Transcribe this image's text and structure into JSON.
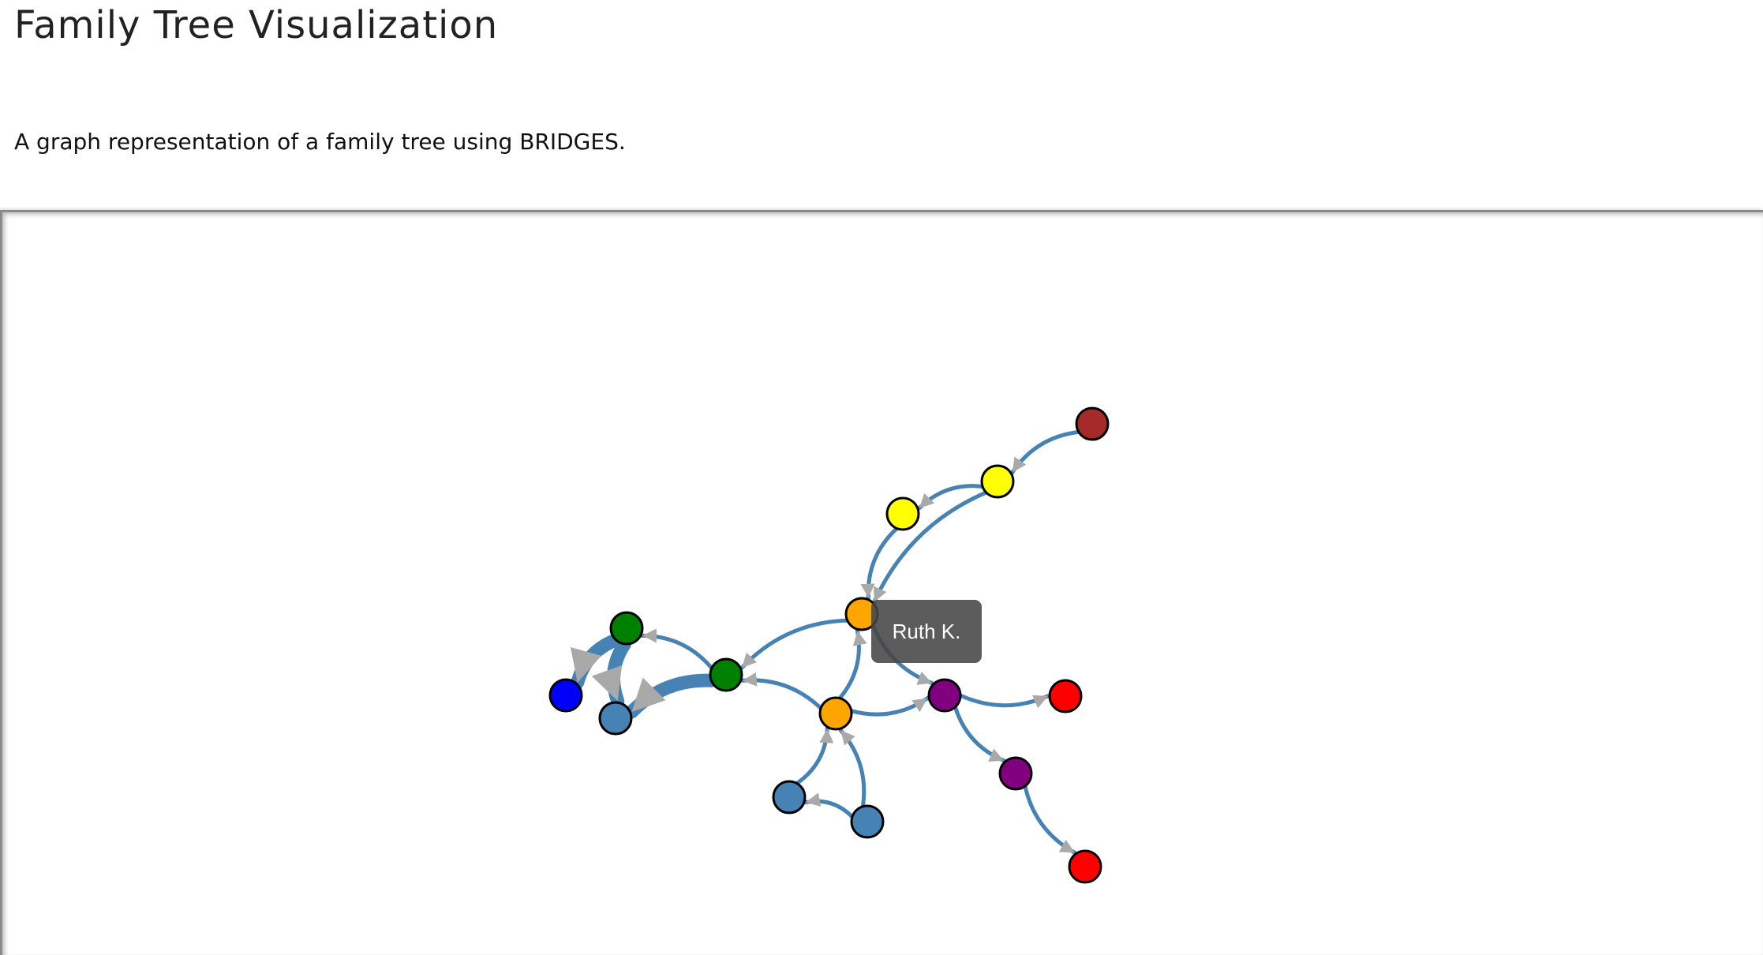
{
  "page": {
    "title": "Family Tree Visualization",
    "description": "A graph representation of a family tree using BRIDGES."
  },
  "graph": {
    "edge_color": "#4682b4",
    "arrow_color": "#a9a9a9",
    "node_border_color": "#000000",
    "tooltip": {
      "label": "Ruth K."
    },
    "nodes": [
      {
        "id": "n-brown",
        "color": "#a52a2a"
      },
      {
        "id": "n-yellow-1",
        "color": "#ffff00"
      },
      {
        "id": "n-yellow-2",
        "color": "#ffff00"
      },
      {
        "id": "n-orange-ruth",
        "color": "#ffa500"
      },
      {
        "id": "n-orange-2",
        "color": "#ffa500"
      },
      {
        "id": "n-green-1",
        "color": "#008000"
      },
      {
        "id": "n-green-2",
        "color": "#008000"
      },
      {
        "id": "n-blue",
        "color": "#0000ff"
      },
      {
        "id": "n-steel-1",
        "color": "#4682b4"
      },
      {
        "id": "n-steel-2",
        "color": "#4682b4"
      },
      {
        "id": "n-steel-3",
        "color": "#4682b4"
      },
      {
        "id": "n-purple-1",
        "color": "#800080"
      },
      {
        "id": "n-purple-2",
        "color": "#800080"
      },
      {
        "id": "n-red-1",
        "color": "#ff0000"
      },
      {
        "id": "n-red-2",
        "color": "#ff0000"
      }
    ],
    "edges": [
      {
        "from": "n-brown",
        "to": "n-yellow-1",
        "weight": "thin"
      },
      {
        "from": "n-yellow-1",
        "to": "n-yellow-2",
        "weight": "thin"
      },
      {
        "from": "n-yellow-1",
        "to": "n-orange-ruth",
        "weight": "thin"
      },
      {
        "from": "n-yellow-2",
        "to": "n-orange-ruth",
        "weight": "thin"
      },
      {
        "from": "n-orange-ruth",
        "to": "n-green-2",
        "weight": "thin"
      },
      {
        "from": "n-orange-ruth",
        "to": "n-purple-1",
        "weight": "thin"
      },
      {
        "from": "n-orange-2",
        "to": "n-orange-ruth",
        "weight": "thin"
      },
      {
        "from": "n-orange-2",
        "to": "n-green-2",
        "weight": "thin"
      },
      {
        "from": "n-orange-2",
        "to": "n-purple-1",
        "weight": "thin"
      },
      {
        "from": "n-green-2",
        "to": "n-green-1",
        "weight": "thin"
      },
      {
        "from": "n-green-2",
        "to": "n-steel-1",
        "weight": "thick"
      },
      {
        "from": "n-green-1",
        "to": "n-blue",
        "weight": "thick"
      },
      {
        "from": "n-green-1",
        "to": "n-steel-1",
        "weight": "thick"
      },
      {
        "from": "n-steel-2",
        "to": "n-orange-2",
        "weight": "thin"
      },
      {
        "from": "n-steel-3",
        "to": "n-orange-2",
        "weight": "thin"
      },
      {
        "from": "n-steel-3",
        "to": "n-steel-2",
        "weight": "thin"
      },
      {
        "from": "n-purple-1",
        "to": "n-red-1",
        "weight": "thin"
      },
      {
        "from": "n-purple-1",
        "to": "n-purple-2",
        "weight": "thin"
      },
      {
        "from": "n-purple-2",
        "to": "n-red-2",
        "weight": "thin"
      }
    ]
  }
}
